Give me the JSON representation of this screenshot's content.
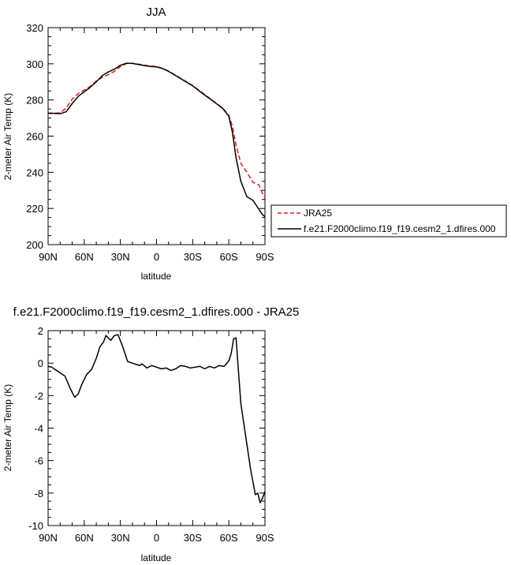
{
  "chart_data": [
    {
      "type": "line",
      "title": "JJA",
      "xlabel": "latitude",
      "ylabel": "2-meter Air Temp (K)",
      "xticks": [
        "90N",
        "60N",
        "30N",
        "0",
        "30S",
        "60S",
        "90S"
      ],
      "xlim": [
        90,
        -90
      ],
      "ylim": [
        200,
        320
      ],
      "yticks": [
        "200",
        "220",
        "240",
        "260",
        "280",
        "300",
        "320"
      ],
      "ytick_values": [
        200,
        220,
        240,
        260,
        280,
        300,
        320
      ],
      "legend_position": "right",
      "series": [
        {
          "name": "JRA25",
          "color": "#e02020",
          "dash": "dashed",
          "x": [
            90,
            85,
            80,
            75,
            70,
            65,
            60,
            55,
            50,
            45,
            40,
            35,
            30,
            25,
            20,
            15,
            10,
            5,
            0,
            -5,
            -10,
            -15,
            -20,
            -25,
            -30,
            -35,
            -40,
            -45,
            -50,
            -55,
            -60,
            -63,
            -66,
            -70,
            -75,
            -80,
            -85,
            -88,
            -90
          ],
          "y": [
            272.9,
            272.6,
            272.9,
            275.5,
            280.5,
            283.5,
            285.5,
            287.5,
            290.5,
            292.5,
            294.0,
            295.8,
            298.5,
            300.1,
            300.3,
            299.8,
            299.2,
            298.8,
            298.5,
            297.5,
            296.0,
            294.0,
            292.0,
            290.0,
            288.0,
            285.5,
            283.0,
            280.5,
            278.0,
            275.5,
            271.5,
            265.5,
            255.0,
            245.0,
            240.0,
            234.5,
            233.0,
            228.0,
            226.0
          ]
        },
        {
          "name": "f.e21.F2000climo.f19_f19.cesm2_1.dfires.000",
          "color": "#000000",
          "dash": "solid",
          "x": [
            90,
            85,
            80,
            75,
            70,
            65,
            60,
            55,
            50,
            45,
            40,
            35,
            30,
            25,
            20,
            15,
            10,
            5,
            0,
            -5,
            -10,
            -15,
            -20,
            -25,
            -30,
            -35,
            -40,
            -45,
            -50,
            -55,
            -60,
            -63,
            -66,
            -70,
            -75,
            -80,
            -85,
            -88,
            -90
          ],
          "y": [
            272.6,
            272.6,
            272.4,
            273.5,
            278.0,
            282.0,
            284.5,
            287.0,
            290.0,
            293.5,
            295.5,
            297.0,
            299.2,
            300.3,
            300.2,
            299.6,
            299.0,
            298.5,
            298.3,
            297.4,
            295.8,
            293.8,
            291.8,
            289.8,
            287.8,
            285.2,
            282.7,
            280.3,
            277.8,
            275.3,
            271.0,
            262.0,
            248.0,
            235.0,
            226.5,
            224.5,
            219.5,
            216.5,
            215.5
          ]
        }
      ]
    },
    {
      "type": "line",
      "title": "f.e21.F2000climo.f19_f19.cesm2_1.dfires.000 - JRA25",
      "xlabel": "latitude",
      "ylabel": "2-meter Air Temp (K)",
      "xticks": [
        "90N",
        "60N",
        "30N",
        "0",
        "30S",
        "60S",
        "90S"
      ],
      "xlim": [
        90,
        -90
      ],
      "ylim": [
        -10,
        2
      ],
      "yticks": [
        "-10",
        "-8",
        "-6",
        "-4",
        "-2",
        "0",
        "2"
      ],
      "ytick_values": [
        -10,
        -8,
        -6,
        -4,
        -2,
        0,
        2
      ],
      "series": [
        {
          "color": "#000000",
          "dash": "solid",
          "x": [
            90,
            87,
            84,
            80,
            76,
            72,
            68,
            65,
            62,
            58,
            54,
            50,
            47,
            44,
            42,
            40,
            38,
            35,
            32,
            28,
            24,
            20,
            16,
            14,
            12,
            8,
            4,
            0,
            -4,
            -8,
            -12,
            -16,
            -20,
            -24,
            -28,
            -32,
            -36,
            -40,
            -44,
            -48,
            -52,
            -56,
            -58,
            -60,
            -62,
            -64,
            -66,
            -68,
            -70,
            -72,
            -74,
            -76,
            -78,
            -80,
            -82,
            -84,
            -86,
            -88,
            -90
          ],
          "y": [
            -0.2,
            -0.25,
            -0.4,
            -0.6,
            -0.8,
            -1.5,
            -2.1,
            -1.9,
            -1.3,
            -0.7,
            -0.4,
            0.3,
            1.0,
            1.3,
            1.7,
            1.55,
            1.4,
            1.7,
            1.75,
            1.0,
            0.1,
            0.0,
            -0.1,
            -0.15,
            -0.05,
            -0.3,
            -0.15,
            -0.25,
            -0.35,
            -0.3,
            -0.45,
            -0.35,
            -0.15,
            -0.2,
            -0.3,
            -0.25,
            -0.2,
            -0.35,
            -0.2,
            -0.3,
            -0.15,
            -0.2,
            -0.05,
            0.15,
            0.6,
            1.5,
            1.55,
            -0.5,
            -2.5,
            -3.5,
            -4.5,
            -5.5,
            -6.5,
            -7.3,
            -8.1,
            -8.0,
            -8.6,
            -8.3,
            -7.9
          ]
        }
      ]
    }
  ]
}
